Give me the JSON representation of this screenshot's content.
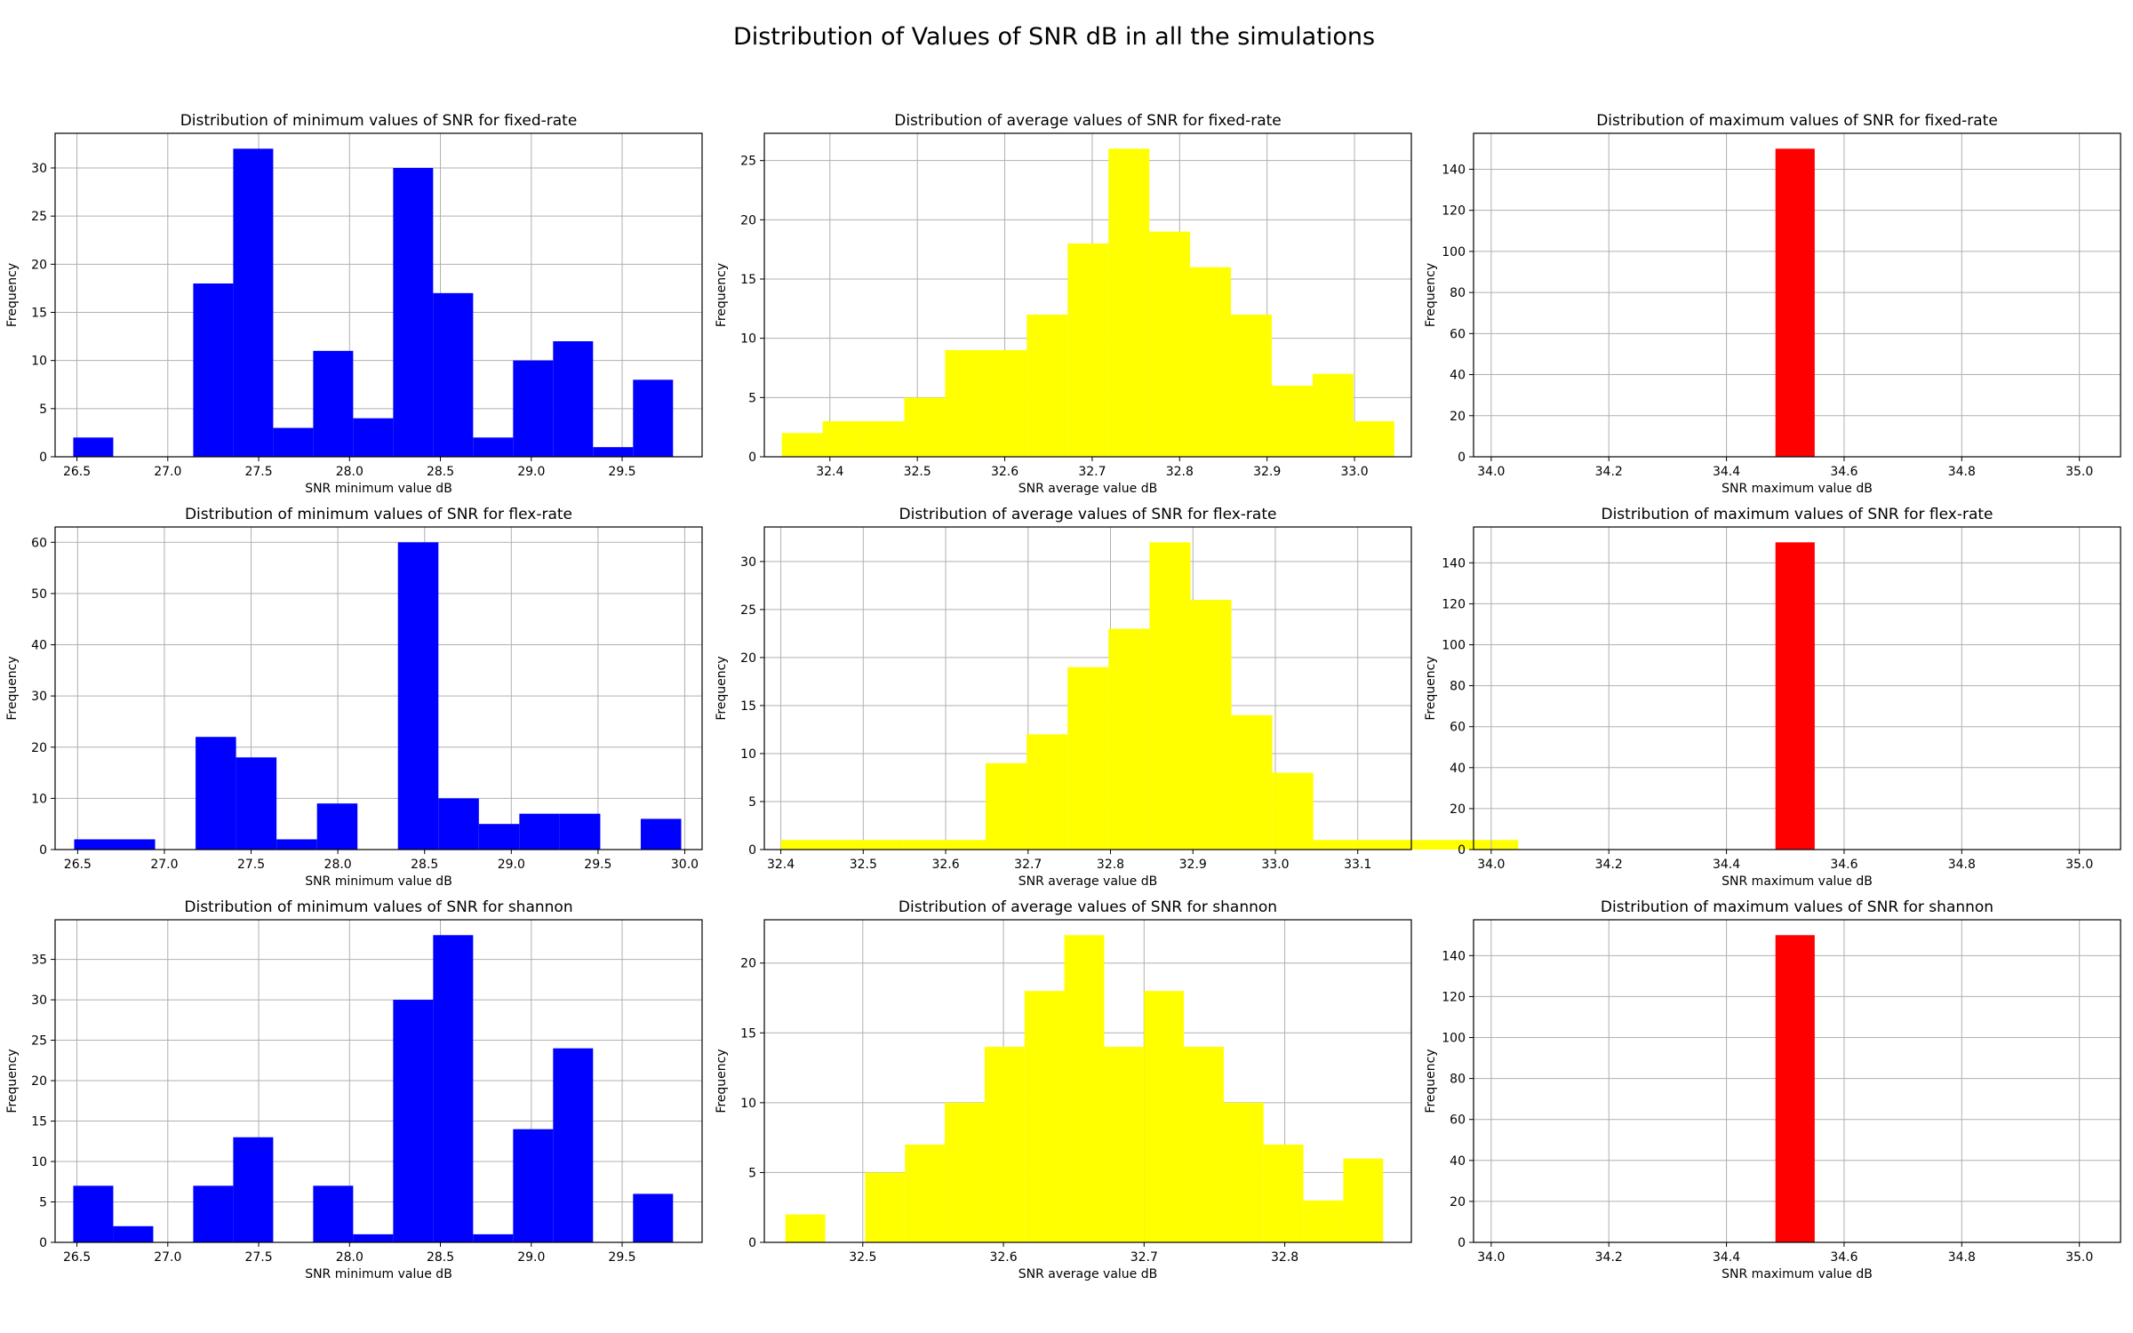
{
  "figure": {
    "title": "Distribution of Values of SNR dB in all the simulations"
  },
  "chart_data": [
    {
      "type": "bar",
      "title": "Distribution of minimum values of SNR for fixed-rate",
      "xlabel": "SNR minimum value dB",
      "ylabel": "Frequency",
      "xlim": [
        26.38,
        29.94
      ],
      "ylim": [
        0,
        33.6
      ],
      "xticks": [
        26.5,
        27.0,
        27.5,
        28.0,
        28.5,
        29.0,
        29.5
      ],
      "xtick_fmt": 1,
      "yticks": [
        0,
        5,
        10,
        15,
        20,
        25,
        30
      ],
      "bin_start": 26.48,
      "bin_width": 0.22,
      "color": "#0000ff",
      "values": [
        2,
        0,
        0,
        18,
        32,
        3,
        11,
        4,
        30,
        17,
        2,
        10,
        12,
        1,
        8
      ]
    },
    {
      "type": "bar",
      "title": "Distribution of average values of SNR for fixed-rate",
      "xlabel": "SNR average value dB",
      "ylabel": "Frequency",
      "xlim": [
        32.325,
        33.065
      ],
      "ylim": [
        0,
        27.3
      ],
      "xticks": [
        32.4,
        32.5,
        32.6,
        32.7,
        32.8,
        32.9,
        33.0
      ],
      "xtick_fmt": 1,
      "yticks": [
        0,
        5,
        10,
        15,
        20,
        25
      ],
      "bin_start": 32.345,
      "bin_width": 0.0467,
      "color": "#ffff00",
      "values": [
        2,
        3,
        3,
        5,
        9,
        9,
        12,
        18,
        26,
        19,
        16,
        12,
        6,
        7,
        3
      ]
    },
    {
      "type": "bar",
      "title": "Distribution of maximum values of SNR  for fixed-rate",
      "xlabel": "SNR maximum value dB",
      "ylabel": "Frequency",
      "xlim": [
        33.97,
        35.07
      ],
      "ylim": [
        0,
        157.5
      ],
      "xticks": [
        34.0,
        34.2,
        34.4,
        34.6,
        34.8,
        35.0
      ],
      "xtick_fmt": 1,
      "yticks": [
        0,
        20,
        40,
        60,
        80,
        100,
        120,
        140
      ],
      "bin_start": 34.4833,
      "bin_width": 0.0667,
      "color": "#ff0000",
      "values": [
        150
      ]
    },
    {
      "type": "bar",
      "title": "Distribution of minimum values of SNR for flex-rate",
      "xlabel": "SNR minimum value dB",
      "ylabel": "Frequency",
      "xlim": [
        26.37,
        30.1
      ],
      "ylim": [
        0,
        63
      ],
      "xticks": [
        26.5,
        27.0,
        27.5,
        28.0,
        28.5,
        29.0,
        29.5,
        30.0
      ],
      "xtick_fmt": 1,
      "yticks": [
        0,
        10,
        20,
        30,
        40,
        50,
        60
      ],
      "bin_start": 26.48,
      "bin_width": 0.2333,
      "color": "#0000ff",
      "values": [
        2,
        2,
        0,
        22,
        18,
        2,
        9,
        0,
        60,
        10,
        5,
        7,
        7,
        0,
        6
      ]
    },
    {
      "type": "bar",
      "title": "Distribution of average values of SNR for flex-rate",
      "xlabel": "SNR average value dB",
      "ylabel": "Frequency",
      "xlim": [
        32.38,
        33.165
      ],
      "ylim": [
        0,
        33.6
      ],
      "xticks": [
        32.4,
        32.5,
        32.6,
        32.7,
        32.8,
        32.9,
        33.0,
        33.1
      ],
      "xtick_fmt": 1,
      "yticks": [
        0,
        5,
        10,
        15,
        20,
        25,
        30
      ],
      "bin_start": 32.4,
      "bin_width": 0.0497,
      "color": "#ffff00",
      "values": [
        1,
        1,
        1,
        1,
        1,
        9,
        12,
        19,
        23,
        32,
        26,
        14,
        8,
        1,
        1,
        1,
        1,
        1
      ]
    },
    {
      "type": "bar",
      "title": "Distribution of maximum values of SNR  for flex-rate",
      "xlabel": "SNR maximum value dB",
      "ylabel": "Frequency",
      "xlim": [
        33.97,
        35.07
      ],
      "ylim": [
        0,
        157.5
      ],
      "xticks": [
        34.0,
        34.2,
        34.4,
        34.6,
        34.8,
        35.0
      ],
      "xtick_fmt": 1,
      "yticks": [
        0,
        20,
        40,
        60,
        80,
        100,
        120,
        140
      ],
      "bin_start": 34.4833,
      "bin_width": 0.0667,
      "color": "#ff0000",
      "values": [
        150
      ]
    },
    {
      "type": "bar",
      "title": "Distribution of minimum values of SNR for shannon",
      "xlabel": "SNR minimum value dB",
      "ylabel": "Frequency",
      "xlim": [
        26.38,
        29.94
      ],
      "ylim": [
        0,
        39.9
      ],
      "xticks": [
        26.5,
        27.0,
        27.5,
        28.0,
        28.5,
        29.0,
        29.5
      ],
      "xtick_fmt": 1,
      "yticks": [
        0,
        5,
        10,
        15,
        20,
        25,
        30,
        35
      ],
      "bin_start": 26.48,
      "bin_width": 0.22,
      "color": "#0000ff",
      "values": [
        7,
        2,
        0,
        7,
        13,
        0,
        7,
        1,
        30,
        38,
        1,
        14,
        24,
        0,
        6
      ]
    },
    {
      "type": "bar",
      "title": "Distribution of average values of SNR for shannon",
      "xlabel": "SNR average value dB",
      "ylabel": "Frequency",
      "xlim": [
        32.43,
        32.89
      ],
      "ylim": [
        0,
        23.1
      ],
      "xticks": [
        32.5,
        32.6,
        32.7,
        32.8
      ],
      "xtick_fmt": 1,
      "yticks": [
        0,
        5,
        10,
        15,
        20
      ],
      "bin_start": 32.445,
      "bin_width": 0.02833,
      "color": "#ffff00",
      "values": [
        2,
        0,
        5,
        7,
        10,
        14,
        18,
        22,
        14,
        18,
        14,
        10,
        7,
        3,
        6
      ]
    },
    {
      "type": "bar",
      "title": "Distribution of maximum values of SNR  for shannon",
      "xlabel": "SNR maximum value dB",
      "ylabel": "Frequency",
      "xlim": [
        33.97,
        35.07
      ],
      "ylim": [
        0,
        157.5
      ],
      "xticks": [
        34.0,
        34.2,
        34.4,
        34.6,
        34.8,
        35.0
      ],
      "xtick_fmt": 1,
      "yticks": [
        0,
        20,
        40,
        60,
        80,
        100,
        120,
        140
      ],
      "bin_start": 34.4833,
      "bin_width": 0.0667,
      "color": "#ff0000",
      "values": [
        150
      ]
    }
  ]
}
